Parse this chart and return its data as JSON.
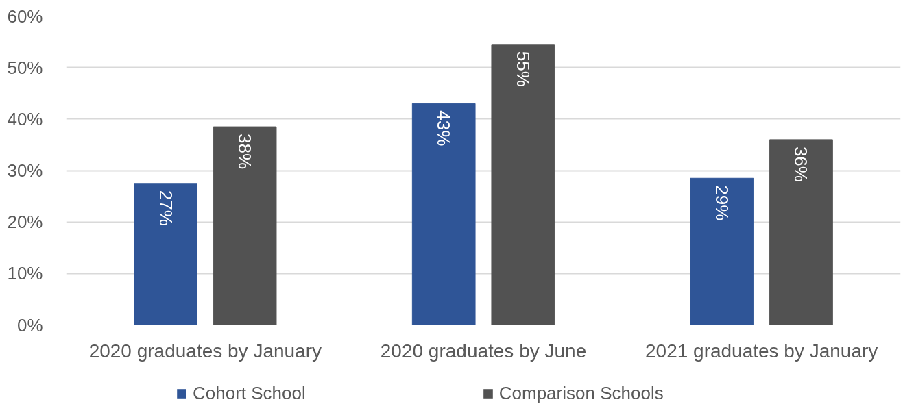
{
  "chart_data": {
    "type": "bar",
    "categories": [
      "2020 graduates by January",
      "2020 graduates by June",
      "2021 graduates by January"
    ],
    "series": [
      {
        "name": "Cohort School",
        "color": "#2f5597",
        "values": [
          27.5,
          43,
          28.5
        ],
        "value_labels": [
          "27%",
          "43%",
          "29%"
        ]
      },
      {
        "name": "Comparison Schools",
        "color": "#525252",
        "values": [
          38.5,
          54.5,
          36
        ],
        "value_labels": [
          "38%",
          "55%",
          "36%"
        ]
      }
    ],
    "ylim": [
      0,
      60
    ],
    "yticks": [
      {
        "value": 0,
        "label": "0%"
      },
      {
        "value": 10,
        "label": "10%"
      },
      {
        "value": 20,
        "label": "20%"
      },
      {
        "value": 30,
        "label": "30%"
      },
      {
        "value": 40,
        "label": "40%"
      },
      {
        "value": 50,
        "label": "50%"
      },
      {
        "value": 60,
        "label": "60%"
      }
    ],
    "grid": "y",
    "legend": "bottom"
  }
}
